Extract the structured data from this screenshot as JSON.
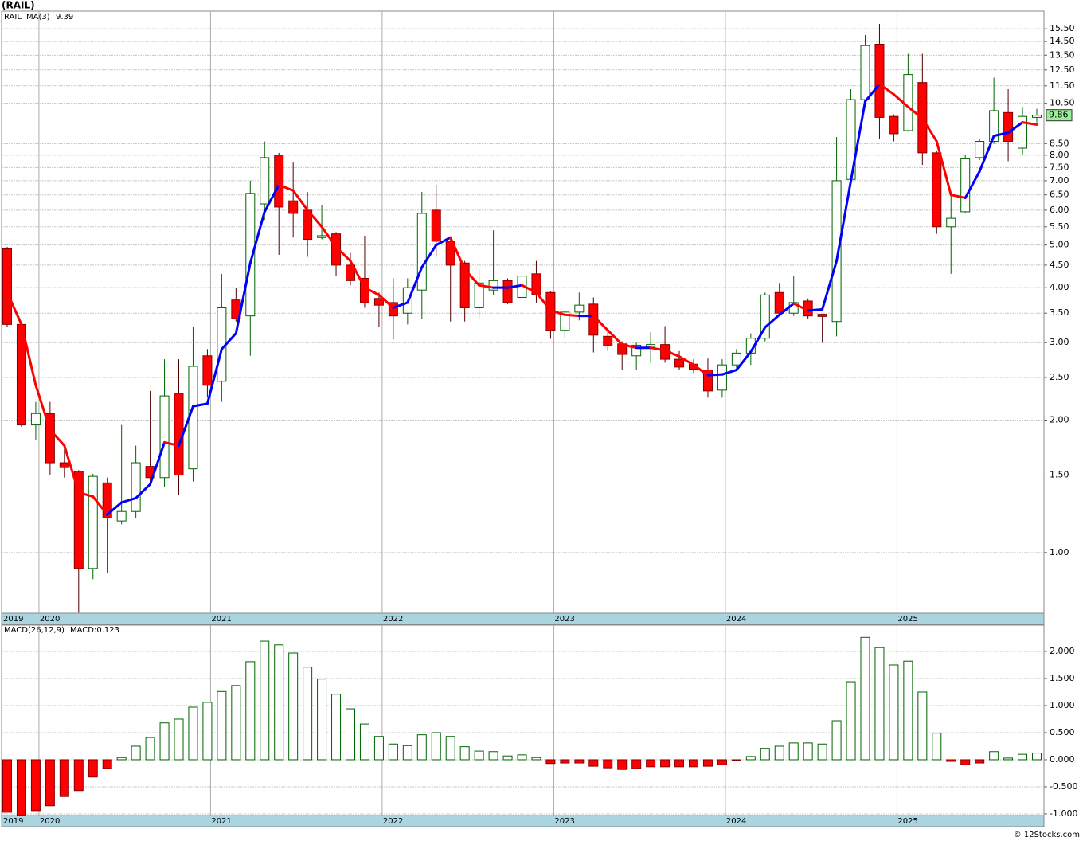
{
  "chart_data": [
    {
      "type": "candlestick",
      "title": "(RAIL)",
      "symbol": "RAIL",
      "symbol_color": "#006400",
      "categories": [
        "2019",
        null,
        "2020",
        null,
        null,
        null,
        null,
        null,
        null,
        null,
        null,
        null,
        null,
        null,
        "2021",
        null,
        null,
        null,
        null,
        null,
        null,
        null,
        null,
        null,
        null,
        null,
        "2022",
        null,
        null,
        null,
        null,
        null,
        null,
        null,
        null,
        null,
        null,
        null,
        "2023",
        null,
        null,
        null,
        null,
        null,
        null,
        null,
        null,
        null,
        null,
        null,
        "2024",
        null,
        null,
        null,
        null,
        null,
        null,
        null,
        null,
        null,
        null,
        null,
        "2025",
        null,
        null,
        null,
        null,
        null,
        null,
        null,
        null,
        null,
        null
      ],
      "open": [
        4.9,
        3.3,
        1.95,
        2.07,
        1.6,
        1.53,
        0.92,
        1.44,
        1.18,
        1.24,
        1.57,
        1.48,
        2.3,
        1.55,
        2.8,
        2.45,
        3.75,
        3.45,
        6.2,
        8.0,
        6.3,
        6.0,
        5.2,
        5.3,
        4.5,
        4.2,
        3.78,
        3.7,
        3.5,
        3.95,
        6.0,
        5.1,
        4.55,
        3.6,
        3.95,
        4.15,
        3.8,
        4.3,
        3.9,
        3.2,
        3.52,
        3.67,
        3.1,
        2.98,
        2.8,
        2.93,
        2.97,
        2.75,
        2.68,
        2.6,
        2.34,
        2.67,
        2.84,
        3.07,
        3.9,
        3.5,
        3.73,
        3.48,
        3.35,
        7.05,
        10.7,
        14.3,
        9.8,
        9.1,
        11.7,
        8.1,
        5.5,
        5.95,
        7.9,
        8.6,
        10.0,
        8.3,
        9.75
      ],
      "high": [
        4.95,
        3.3,
        2.2,
        2.2,
        1.75,
        1.54,
        1.51,
        1.48,
        1.95,
        1.75,
        2.33,
        2.75,
        2.75,
        3.25,
        2.9,
        4.3,
        4.0,
        7.0,
        8.6,
        8.1,
        7.7,
        6.6,
        6.15,
        5.35,
        4.8,
        5.25,
        3.9,
        4.2,
        4.2,
        6.6,
        6.85,
        5.2,
        4.6,
        4.4,
        5.4,
        4.2,
        4.45,
        4.6,
        3.93,
        3.55,
        3.9,
        3.8,
        3.2,
        3.02,
        3.0,
        3.17,
        3.27,
        2.87,
        2.75,
        2.76,
        2.75,
        2.9,
        3.15,
        3.9,
        4.1,
        4.25,
        3.78,
        3.48,
        8.8,
        11.3,
        15.0,
        15.9,
        9.9,
        13.6,
        13.6,
        8.2,
        6.6,
        8.0,
        8.7,
        12.0,
        11.3,
        10.3,
        10.2
      ],
      "low": [
        3.25,
        1.93,
        1.8,
        1.5,
        1.48,
        0.73,
        0.87,
        0.9,
        1.16,
        1.2,
        1.45,
        1.41,
        1.35,
        1.45,
        2.25,
        2.2,
        3.35,
        2.8,
        5.7,
        4.75,
        5.2,
        4.7,
        5.15,
        4.25,
        4.05,
        3.6,
        3.25,
        3.05,
        3.3,
        3.4,
        4.7,
        3.35,
        3.35,
        3.4,
        3.85,
        3.67,
        3.3,
        3.7,
        3.06,
        3.07,
        3.37,
        2.85,
        2.87,
        2.6,
        2.6,
        2.7,
        2.7,
        2.6,
        2.56,
        2.25,
        2.25,
        2.6,
        2.67,
        3.02,
        3.45,
        3.45,
        3.4,
        3.0,
        3.1,
        6.9,
        10.6,
        8.7,
        8.6,
        9.05,
        7.6,
        5.3,
        4.3,
        5.9,
        7.8,
        8.5,
        7.75,
        8.0,
        9.5
      ],
      "close": [
        3.3,
        1.95,
        2.07,
        1.6,
        1.56,
        0.92,
        1.49,
        1.2,
        1.24,
        1.6,
        1.48,
        2.27,
        1.5,
        2.65,
        2.4,
        3.6,
        3.4,
        6.55,
        7.9,
        6.1,
        5.9,
        5.15,
        5.25,
        4.5,
        4.15,
        3.7,
        3.65,
        3.45,
        4.0,
        5.9,
        5.1,
        4.5,
        3.6,
        4.1,
        4.15,
        3.7,
        4.25,
        3.85,
        3.2,
        3.52,
        3.65,
        3.12,
        2.95,
        2.82,
        2.96,
        2.97,
        2.75,
        2.64,
        2.61,
        2.33,
        2.67,
        2.84,
        3.07,
        3.85,
        3.5,
        3.7,
        3.45,
        3.44,
        7.0,
        10.7,
        14.2,
        9.75,
        8.95,
        12.2,
        8.1,
        5.5,
        5.75,
        7.85,
        8.6,
        10.1,
        8.6,
        9.8,
        9.86
      ],
      "up_color": "#006400",
      "down_color": "#ff0000",
      "price_box_color": "#99ee99",
      "log_scale": true,
      "grid": true,
      "ylim": [
        0.728,
        17.0
      ],
      "yticks": [
        {
          "value": 1,
          "label": "1.00"
        },
        {
          "value": 1.5,
          "label": "1.50"
        },
        {
          "value": 2,
          "label": "2.00"
        },
        {
          "value": 2.5,
          "label": "2.50"
        },
        {
          "value": 3,
          "label": "3.00"
        },
        {
          "value": 3.5,
          "label": "3.50"
        },
        {
          "value": 4,
          "label": "4.00"
        },
        {
          "value": 4.5,
          "label": "4.50"
        },
        {
          "value": 5,
          "label": "5.00"
        },
        {
          "value": 5.5,
          "label": "5.50"
        },
        {
          "value": 6,
          "label": "6.00"
        },
        {
          "value": 6.5,
          "label": "6.50"
        },
        {
          "value": 7,
          "label": "7.00"
        },
        {
          "value": 7.5,
          "label": "7.50"
        },
        {
          "value": 8,
          "label": "8.00"
        },
        {
          "value": 8.5,
          "label": "8.50"
        },
        {
          "value": 10.5,
          "label": "10.50"
        },
        {
          "value": 11.5,
          "label": "11.50"
        },
        {
          "value": 12.5,
          "label": "12.50"
        },
        {
          "value": 13.5,
          "label": "13.50"
        },
        {
          "value": 14.5,
          "label": "14.50"
        },
        {
          "value": 15.5,
          "label": "15.50"
        }
      ],
      "ma": {
        "name": "MA(3)",
        "color": "#0000ff",
        "up_color": "#0000ff",
        "down_color": "#ff0000",
        "values": [
          3.9,
          3.3,
          2.4,
          1.9,
          1.75,
          1.37,
          1.34,
          1.22,
          1.3,
          1.33,
          1.43,
          1.78,
          1.75,
          2.15,
          2.18,
          2.9,
          3.15,
          4.55,
          5.95,
          6.85,
          6.65,
          6.0,
          5.5,
          4.95,
          4.6,
          4.0,
          3.85,
          3.6,
          3.7,
          4.45,
          5.0,
          5.2,
          4.4,
          4.05,
          4.0,
          4.0,
          4.05,
          3.9,
          3.55,
          3.47,
          3.45,
          3.45,
          3.2,
          2.97,
          2.92,
          2.92,
          2.88,
          2.79,
          2.67,
          2.53,
          2.54,
          2.6,
          2.86,
          3.25,
          3.47,
          3.68,
          3.55,
          3.57,
          4.6,
          7.0,
          10.6,
          11.6,
          11.0,
          10.3,
          9.7,
          8.6,
          6.5,
          6.4,
          7.35,
          8.85,
          9.0,
          9.5,
          9.39
        ]
      }
    },
    {
      "type": "bar",
      "title": "MACD(26,12,9)",
      "current_label": "MACD:0.123",
      "label_color": "#0000aa",
      "values": [
        -0.97,
        -1.02,
        -0.94,
        -0.85,
        -0.68,
        -0.57,
        -0.32,
        -0.16,
        0.04,
        0.25,
        0.41,
        0.68,
        0.75,
        0.97,
        1.06,
        1.26,
        1.37,
        1.81,
        2.19,
        2.12,
        1.97,
        1.71,
        1.49,
        1.21,
        0.94,
        0.66,
        0.43,
        0.29,
        0.26,
        0.46,
        0.5,
        0.43,
        0.24,
        0.16,
        0.15,
        0.07,
        0.09,
        0.04,
        -0.07,
        -0.06,
        -0.06,
        -0.12,
        -0.15,
        -0.18,
        -0.16,
        -0.13,
        -0.13,
        -0.13,
        -0.13,
        -0.12,
        -0.09,
        -0.01,
        0.06,
        0.21,
        0.25,
        0.31,
        0.31,
        0.29,
        0.72,
        1.44,
        2.26,
        2.07,
        1.75,
        1.82,
        1.25,
        0.49,
        -0.03,
        -0.09,
        -0.06,
        0.15,
        0.03,
        0.1,
        0.123
      ],
      "pos_color": "#006400",
      "neg_color": "#ff0000",
      "grid": true,
      "ylim": [
        -1.03,
        2.485
      ],
      "yticks": [
        {
          "value": -1,
          "label": "-1.000"
        },
        {
          "value": -0.5,
          "label": "-0.500"
        },
        {
          "value": 0,
          "label": "0.000"
        },
        {
          "value": 0.5,
          "label": "0.500"
        },
        {
          "value": 1,
          "label": "1.000"
        },
        {
          "value": 1.5,
          "label": "1.500"
        },
        {
          "value": 2,
          "label": "2.000"
        }
      ]
    },
    {
      "type": "credit",
      "text": "© 12Stocks.com"
    }
  ]
}
